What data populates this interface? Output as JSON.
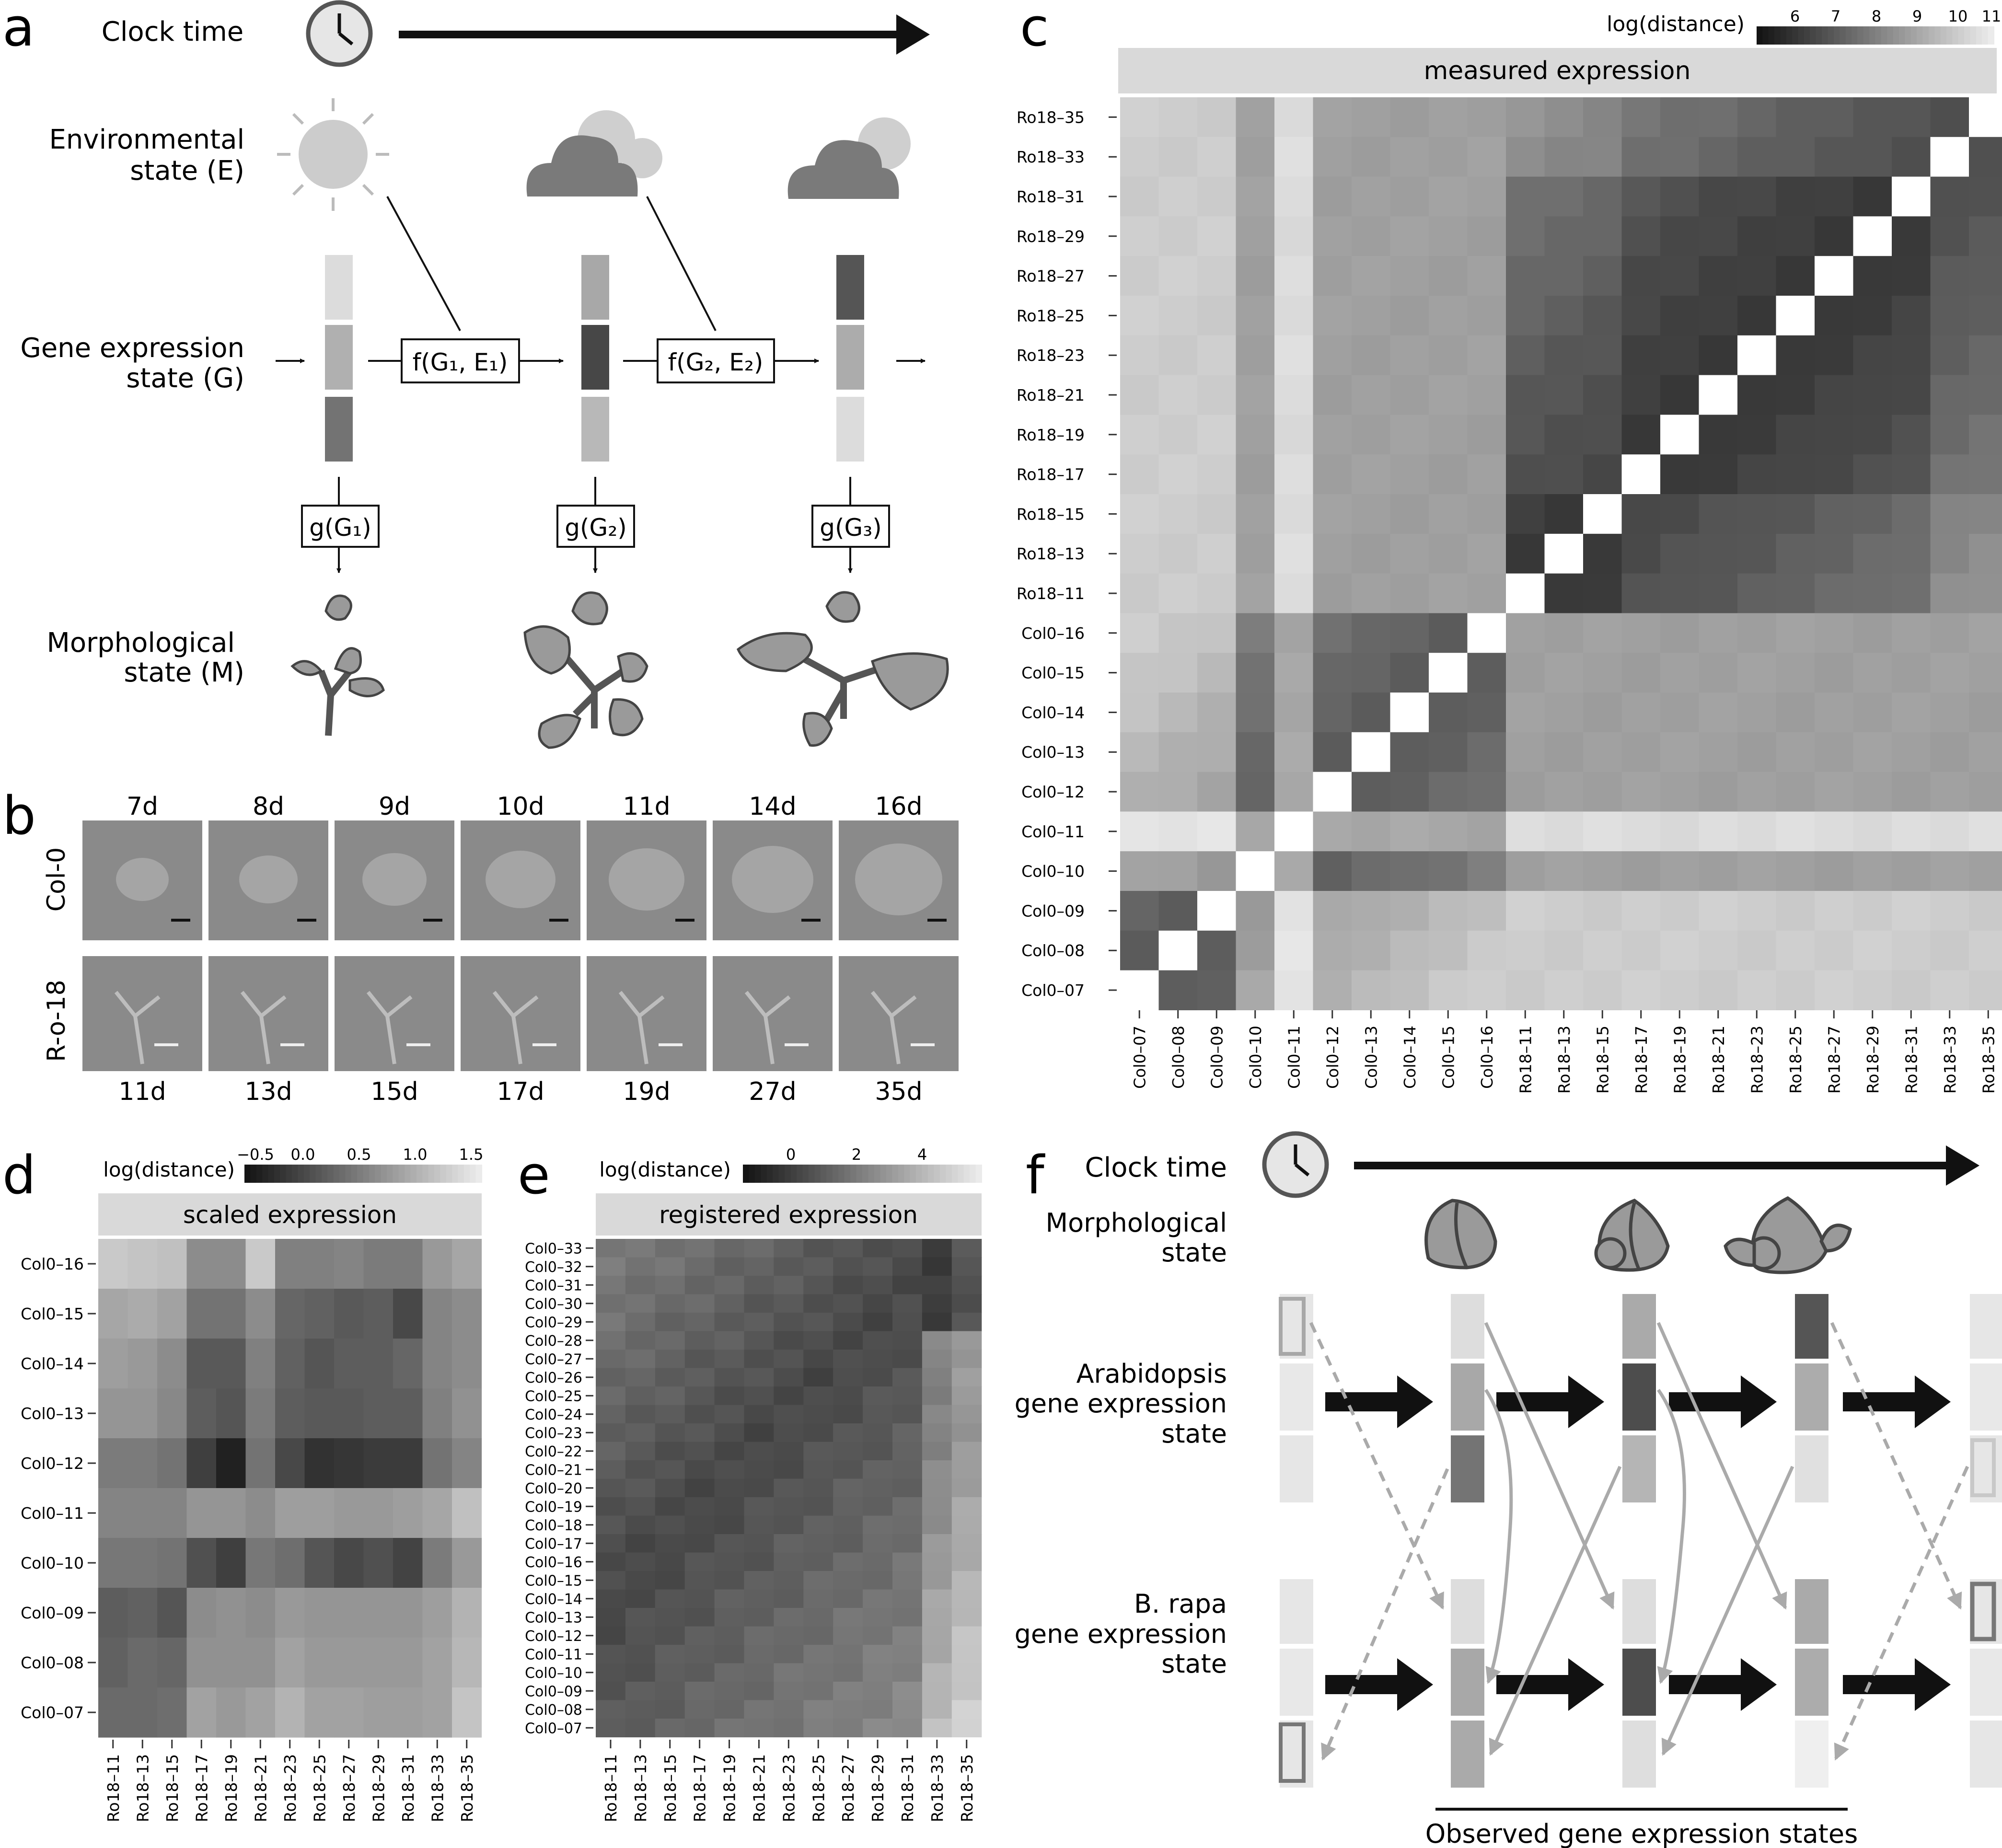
{
  "panels": {
    "a": {
      "letter": "a",
      "labels": {
        "clock_time": "Clock time",
        "environmental_1": "Environmental",
        "environmental_2": "state (E)",
        "gene_expr_1": "Gene expression",
        "gene_expr_2": "state (G)",
        "morph_1": "Morphological",
        "morph_2": "state (M)"
      },
      "functions": {
        "f1": "f(G₁, E₁)",
        "f2": "f(G₂, E₂)",
        "g1": "g(G₁)",
        "g2": "g(G₂)",
        "g3": "g(G₃)"
      }
    },
    "b": {
      "letter": "b",
      "row_labels": [
        "Col-0",
        "R-o-18"
      ],
      "top_days": [
        "7d",
        "8d",
        "9d",
        "10d",
        "11d",
        "14d",
        "16d"
      ],
      "bottom_days": [
        "11d",
        "13d",
        "15d",
        "17d",
        "19d",
        "27d",
        "35d"
      ]
    },
    "c": {
      "letter": "c",
      "legend_title": "log(distance)",
      "legend_ticks": [
        "6",
        "7",
        "8",
        "9",
        "10",
        "11"
      ],
      "strip_title": "measured expression"
    },
    "d": {
      "letter": "d",
      "legend_title": "log(distance)",
      "legend_ticks": [
        "−0.5",
        "0.0",
        "0.5",
        "1.0",
        "1.5"
      ],
      "strip_title": "scaled expression"
    },
    "e": {
      "letter": "e",
      "legend_title": "log(distance)",
      "legend_ticks": [
        "0",
        "2",
        "4"
      ],
      "strip_title": "registered expression"
    },
    "f": {
      "letter": "f",
      "labels": {
        "clock_time": "Clock time",
        "morph_1": "Morphological",
        "morph_2": "state",
        "arab_1": "Arabidopsis",
        "arab_2": "gene expression",
        "arab_3": "state",
        "brapa_1": "B. rapa",
        "brapa_2": "gene expression",
        "brapa_3": "state",
        "observed": "Observed gene expression states"
      }
    }
  },
  "chart_data": [
    {
      "panel": "c",
      "type": "heatmap",
      "title": "measured expression",
      "color_label": "log(distance)",
      "color_range": [
        5.5,
        11.2
      ],
      "x_labels": [
        "Col0–07",
        "Col0–08",
        "Col0–09",
        "Col0–10",
        "Col0–11",
        "Col0–12",
        "Col0–13",
        "Col0–14",
        "Col0–15",
        "Col0–16",
        "Ro18–11",
        "Ro18–13",
        "Ro18–15",
        "Ro18–17",
        "Ro18–19",
        "Ro18–21",
        "Ro18–23",
        "Ro18–25",
        "Ro18–27",
        "Ro18–29",
        "Ro18–31",
        "Ro18–33",
        "Ro18–35"
      ],
      "y_labels": [
        "Ro18–35",
        "Ro18–33",
        "Ro18–31",
        "Ro18–29",
        "Ro18–27",
        "Ro18–25",
        "Ro18–23",
        "Ro18–21",
        "Ro18–19",
        "Ro18–17",
        "Ro18–15",
        "Ro18–13",
        "Ro18–11",
        "Col0–16",
        "Col0–15",
        "Col0–14",
        "Col0–13",
        "Col0–12",
        "Col0–11",
        "Col0–10",
        "Col0–09",
        "Col0–08",
        "Col0–07"
      ]
    },
    {
      "panel": "d",
      "type": "heatmap",
      "title": "scaled expression",
      "color_label": "log(distance)",
      "color_range": [
        -0.8,
        1.7
      ],
      "x_labels": [
        "Ro18–11",
        "Ro18–13",
        "Ro18–15",
        "Ro18–17",
        "Ro18–19",
        "Ro18–21",
        "Ro18–23",
        "Ro18–25",
        "Ro18–27",
        "Ro18–29",
        "Ro18–31",
        "Ro18–33",
        "Ro18–35"
      ],
      "y_labels": [
        "Col0–16",
        "Col0–15",
        "Col0–14",
        "Col0–13",
        "Col0–12",
        "Col0–11",
        "Col0–10",
        "Col0–09",
        "Col0–08",
        "Col0–07"
      ],
      "values": [
        [
          1.3,
          1.25,
          1.2,
          0.6,
          0.6,
          1.3,
          0.45,
          0.45,
          0.5,
          0.4,
          0.4,
          0.75,
          0.9
        ],
        [
          0.9,
          0.95,
          0.85,
          0.3,
          0.3,
          0.6,
          0.15,
          0.1,
          0.0,
          0.05,
          -0.2,
          0.5,
          0.6
        ],
        [
          0.8,
          0.75,
          0.6,
          0.0,
          0.0,
          0.45,
          0.1,
          -0.05,
          0.05,
          0.05,
          0.15,
          0.5,
          0.6
        ],
        [
          0.7,
          0.7,
          0.55,
          0.05,
          -0.05,
          0.4,
          0.05,
          0.0,
          0.0,
          0.05,
          0.05,
          0.45,
          0.65
        ],
        [
          0.4,
          0.4,
          0.3,
          -0.3,
          -0.65,
          0.3,
          -0.2,
          -0.45,
          -0.4,
          -0.35,
          -0.35,
          0.3,
          0.5
        ],
        [
          0.5,
          0.5,
          0.5,
          0.7,
          0.7,
          0.6,
          0.8,
          0.8,
          0.75,
          0.75,
          0.8,
          0.9,
          1.2
        ],
        [
          0.35,
          0.35,
          0.3,
          -0.1,
          -0.3,
          0.35,
          0.25,
          -0.05,
          -0.2,
          -0.1,
          -0.25,
          0.4,
          0.75
        ],
        [
          0.05,
          0.1,
          -0.05,
          0.6,
          0.65,
          0.6,
          0.75,
          0.7,
          0.7,
          0.7,
          0.7,
          0.8,
          1.05
        ],
        [
          0.1,
          0.2,
          0.15,
          0.65,
          0.65,
          0.65,
          0.85,
          0.75,
          0.75,
          0.75,
          0.75,
          0.85,
          1.1
        ],
        [
          0.2,
          0.2,
          0.25,
          0.85,
          0.75,
          0.85,
          1.05,
          0.85,
          0.85,
          0.8,
          0.8,
          0.85,
          1.25
        ]
      ]
    },
    {
      "panel": "e",
      "type": "heatmap",
      "title": "registered expression",
      "color_label": "log(distance)",
      "color_range": [
        -1.0,
        5.8
      ],
      "x_labels": [
        "Ro18–11",
        "Ro18–13",
        "Ro18–15",
        "Ro18–17",
        "Ro18–19",
        "Ro18–21",
        "Ro18–23",
        "Ro18–25",
        "Ro18–27",
        "Ro18–29",
        "Ro18–31",
        "Ro18–33",
        "Ro18–35"
      ],
      "y_labels": [
        "Col0–33",
        "Col0–32",
        "Col0–31",
        "Col0–30",
        "Col0–29",
        "Col0–28",
        "Col0–27",
        "Col0–26",
        "Col0–25",
        "Col0–24",
        "Col0–23",
        "Col0–22",
        "Col0–21",
        "Col0–20",
        "Col0–19",
        "Col0–18",
        "Col0–17",
        "Col0–16",
        "Col0–15",
        "Col0–14",
        "Col0–13",
        "Col0–12",
        "Col0–11",
        "Col0–10",
        "Col0–09",
        "Col0–08",
        "Col0–07"
      ]
    }
  ]
}
